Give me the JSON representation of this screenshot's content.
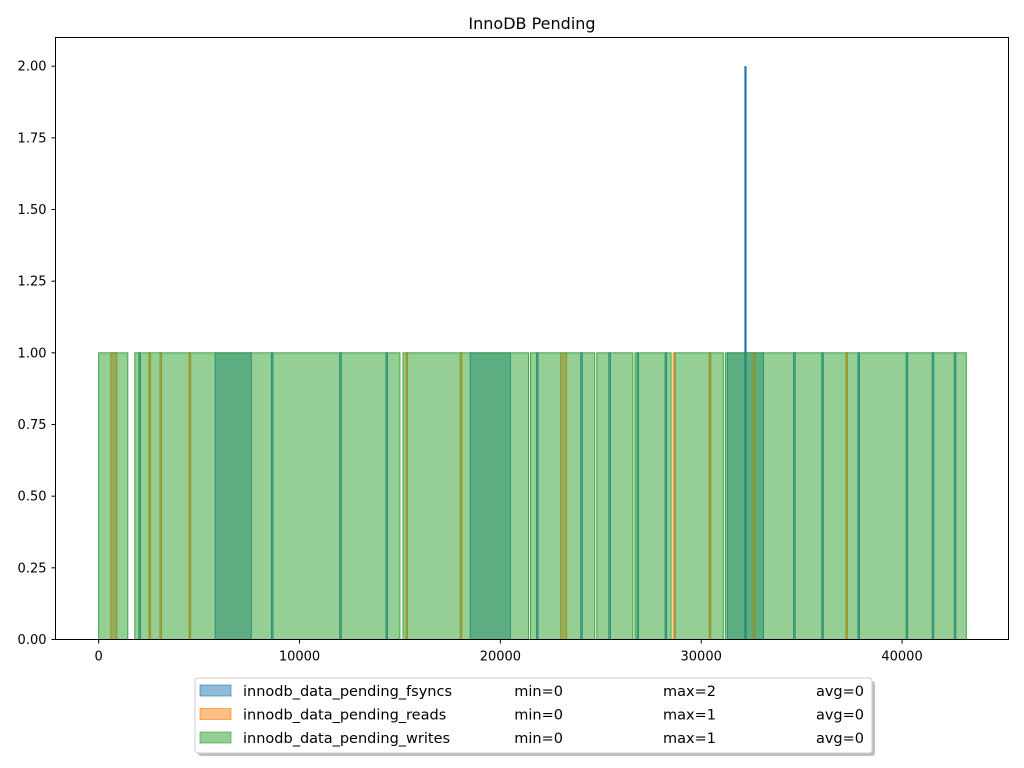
{
  "chart_data": {
    "type": "area",
    "title": "InnoDB Pending",
    "xlabel": "",
    "ylabel": "",
    "xlim": [
      -2150,
      45300
    ],
    "ylim": [
      0,
      2.1
    ],
    "xticks": [
      0,
      10000,
      20000,
      30000,
      40000
    ],
    "yticks": [
      0.0,
      0.25,
      0.5,
      0.75,
      1.0,
      1.25,
      1.5,
      1.75,
      2.0
    ],
    "grid": false,
    "legend_position": "bottom-center",
    "series": [
      {
        "name": "innodb_data_pending_fsyncs",
        "color": "#1f77b4",
        "stats": {
          "min": "min=0",
          "max": "max=2",
          "avg": "avg=0"
        },
        "pulses": [
          [
            5800,
            7600
          ],
          [
            18500,
            20500
          ],
          [
            31300,
            33100
          ],
          [
            2000,
            2080
          ],
          [
            8600,
            8680
          ],
          [
            12000,
            12080
          ],
          [
            14300,
            14380
          ],
          [
            21800,
            21880
          ],
          [
            24000,
            24080
          ],
          [
            25400,
            25480
          ],
          [
            26800,
            26880
          ],
          [
            28200,
            28280
          ],
          [
            34600,
            34680
          ],
          [
            36000,
            36080
          ],
          [
            37800,
            37880
          ],
          [
            40200,
            40280
          ],
          [
            41500,
            41580
          ],
          [
            42600,
            42680
          ]
        ],
        "spikes": [
          [
            32200,
            2
          ]
        ]
      },
      {
        "name": "innodb_data_pending_reads",
        "color": "#ff7f0e",
        "stats": {
          "min": "min=0",
          "max": "max=1",
          "avg": "avg=0"
        },
        "pulses": [
          [
            600,
            900
          ],
          [
            2500,
            2580
          ],
          [
            3050,
            3130
          ],
          [
            4500,
            4580
          ],
          [
            15300,
            15380
          ],
          [
            18000,
            18080
          ],
          [
            23000,
            23300
          ],
          [
            28600,
            28680
          ],
          [
            30400,
            30480
          ],
          [
            32600,
            32680
          ],
          [
            37200,
            37280
          ]
        ],
        "spikes": []
      },
      {
        "name": "innodb_data_pending_writes",
        "color": "#2ca02c",
        "stats": {
          "min": "min=0",
          "max": "max=1",
          "avg": "avg=0"
        },
        "pulses": [
          [
            0,
            1450
          ],
          [
            1800,
            15000
          ],
          [
            15150,
            21400
          ],
          [
            21500,
            24700
          ],
          [
            24800,
            26600
          ],
          [
            26700,
            28500
          ],
          [
            28700,
            31100
          ],
          [
            31200,
            43200
          ]
        ],
        "spikes": []
      }
    ]
  }
}
